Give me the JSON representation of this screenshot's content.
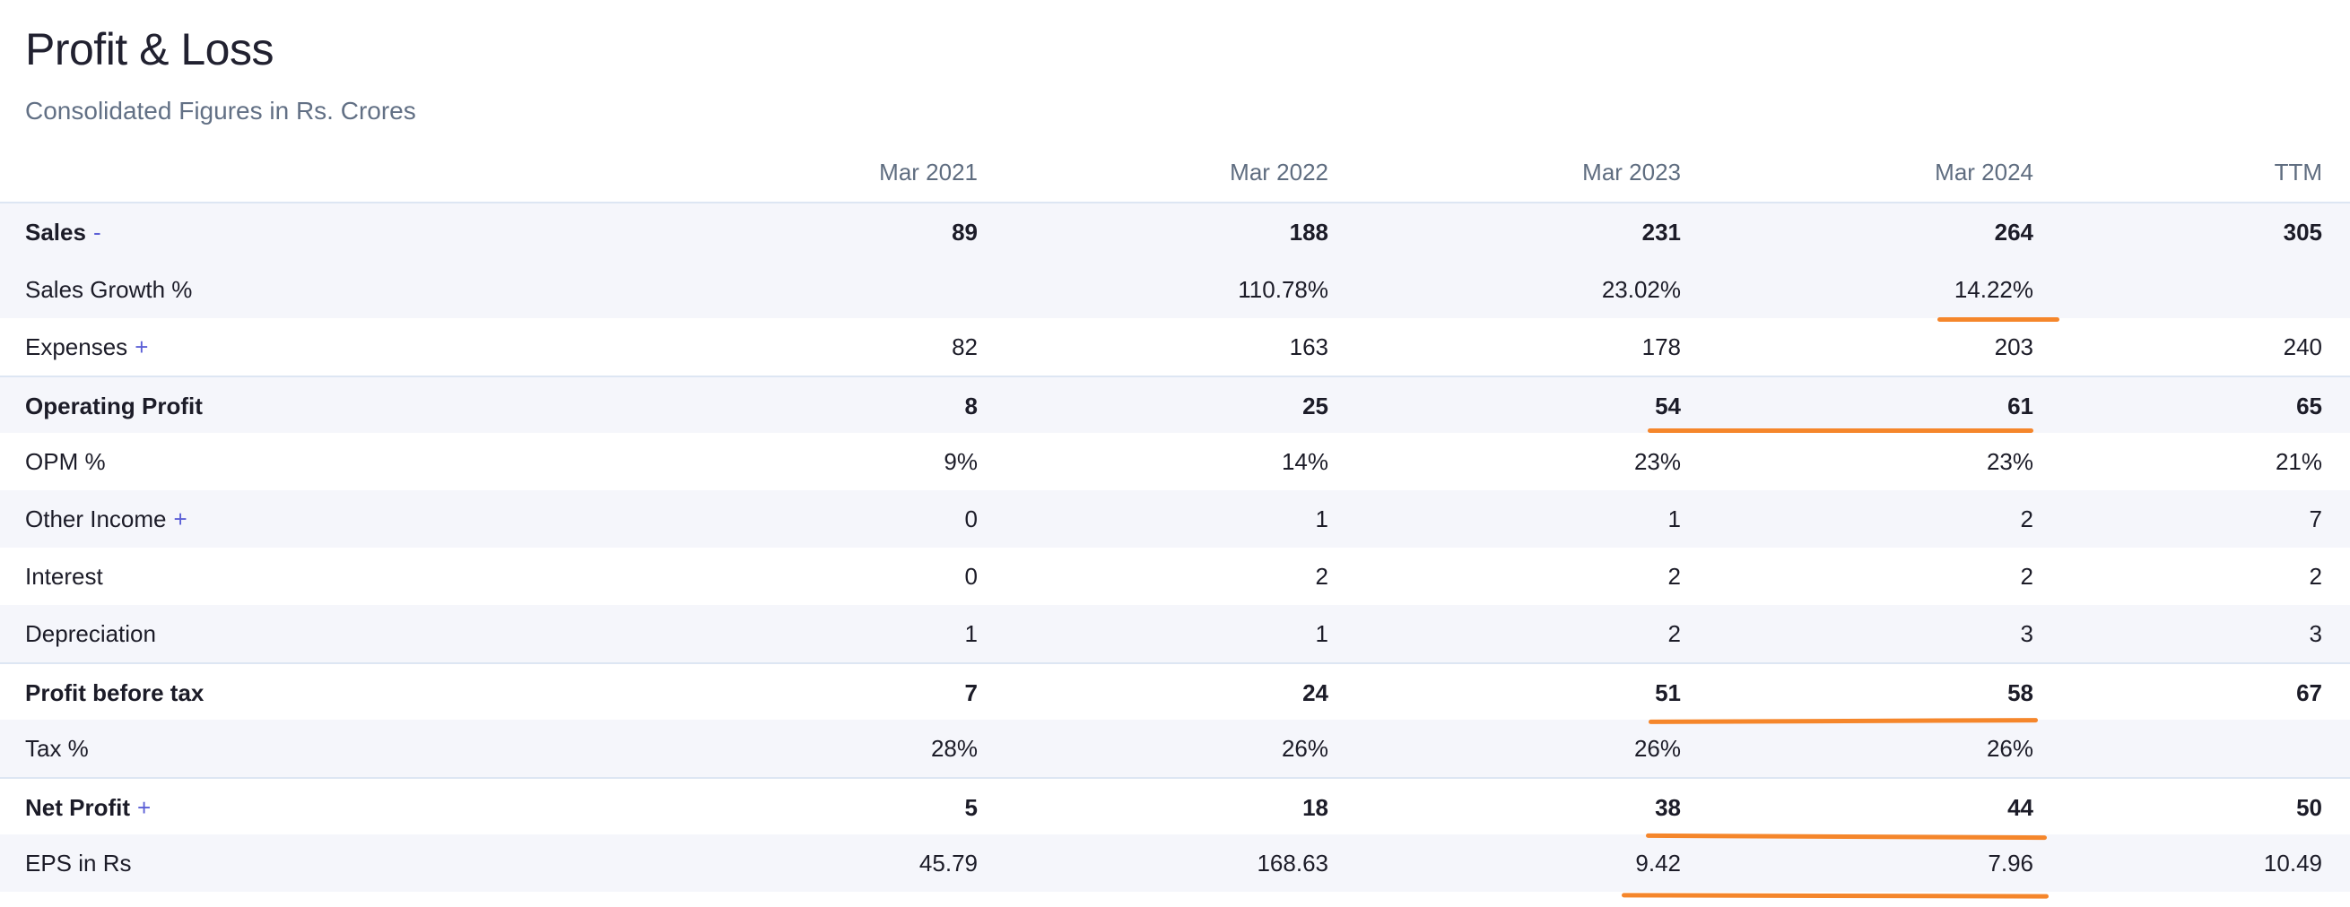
{
  "header": {
    "title": "Profit & Loss",
    "subtitle": "Consolidated Figures in Rs. Crores"
  },
  "table": {
    "columns": [
      "Mar 2021",
      "Mar 2022",
      "Mar 2023",
      "Mar 2024",
      "TTM"
    ],
    "rows": [
      {
        "label": "Sales",
        "toggle": "-",
        "values": [
          "89",
          "188",
          "231",
          "264",
          "305"
        ]
      },
      {
        "label": "Sales Growth %",
        "toggle": "",
        "values": [
          "",
          "110.78%",
          "23.02%",
          "14.22%",
          ""
        ]
      },
      {
        "label": "Expenses",
        "toggle": "+",
        "values": [
          "82",
          "163",
          "178",
          "203",
          "240"
        ]
      },
      {
        "label": "Operating Profit",
        "toggle": "",
        "values": [
          "8",
          "25",
          "54",
          "61",
          "65"
        ]
      },
      {
        "label": "OPM %",
        "toggle": "",
        "values": [
          "9%",
          "14%",
          "23%",
          "23%",
          "21%"
        ]
      },
      {
        "label": "Other Income",
        "toggle": "+",
        "values": [
          "0",
          "1",
          "1",
          "2",
          "7"
        ]
      },
      {
        "label": "Interest",
        "toggle": "",
        "values": [
          "0",
          "2",
          "2",
          "2",
          "2"
        ]
      },
      {
        "label": "Depreciation",
        "toggle": "",
        "values": [
          "1",
          "1",
          "2",
          "3",
          "3"
        ]
      },
      {
        "label": "Profit before tax",
        "toggle": "",
        "values": [
          "7",
          "24",
          "51",
          "58",
          "67"
        ]
      },
      {
        "label": "Tax %",
        "toggle": "",
        "values": [
          "28%",
          "26%",
          "26%",
          "26%",
          ""
        ]
      },
      {
        "label": "Net Profit",
        "toggle": "+",
        "values": [
          "5",
          "18",
          "38",
          "44",
          "50"
        ]
      },
      {
        "label": "EPS in Rs",
        "toggle": "",
        "values": [
          "45.79",
          "168.63",
          "9.42",
          "7.96",
          "10.49"
        ]
      }
    ]
  },
  "colors": {
    "annotation": "#f5862b",
    "toggle": "#5b5fd6",
    "row_shade": "#f5f6fb"
  }
}
